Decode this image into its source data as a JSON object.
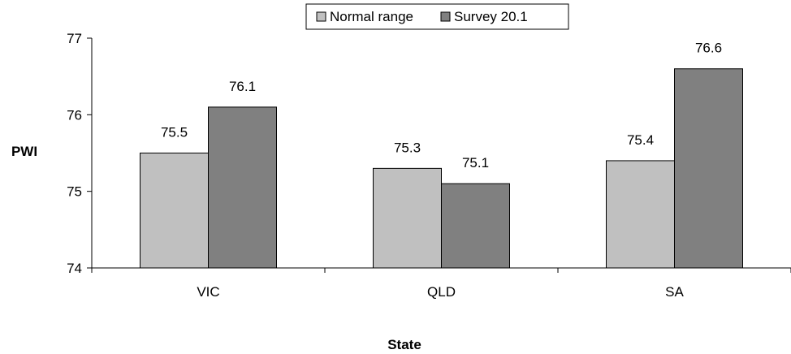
{
  "chart_data": {
    "type": "bar",
    "categories": [
      "VIC",
      "QLD",
      "SA"
    ],
    "series": [
      {
        "name": "Normal range",
        "values": [
          75.5,
          75.3,
          75.4
        ],
        "color": "#c0c0c0"
      },
      {
        "name": "Survey 20.1",
        "values": [
          76.1,
          75.1,
          76.6
        ],
        "color": "#808080"
      }
    ],
    "xlabel": "State",
    "ylabel": "PWI",
    "ylim": [
      74,
      77
    ],
    "yticks": [
      "74",
      "75",
      "76",
      "77"
    ],
    "grid": false,
    "legend_position": "top-center"
  }
}
